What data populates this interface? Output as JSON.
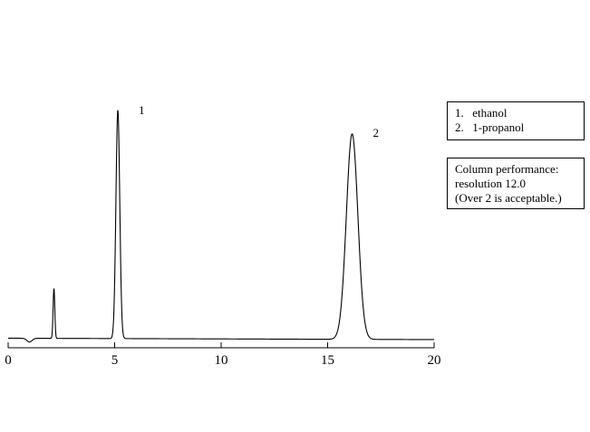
{
  "chart_data": {
    "type": "line",
    "title": "",
    "xlabel": "",
    "ylabel": "",
    "xlim": [
      0,
      20
    ],
    "ylim": [
      0,
      100
    ],
    "grid": false,
    "x_ticks": [
      0,
      5,
      10,
      15,
      20
    ],
    "x_tick_labels": [
      "0",
      "5",
      "10",
      "15",
      "20"
    ],
    "baseline": {
      "start": 1.0,
      "end": 0.4
    },
    "dip": {
      "x": 1.0,
      "depth": 1.6,
      "width": 0.12
    },
    "peaks": [
      {
        "x": 2.15,
        "height": 21.5,
        "width": 0.04,
        "label": ""
      },
      {
        "x": 5.15,
        "height": 98.5,
        "width": 0.09,
        "label": "1"
      },
      {
        "x": 16.15,
        "height": 88.6,
        "width": 0.27,
        "label": "2"
      }
    ]
  },
  "legend": {
    "items": [
      {
        "num": "1.",
        "name": "ethanol"
      },
      {
        "num": "2.",
        "name": "1-propanol"
      }
    ]
  },
  "performance": {
    "line1": "Column performance:",
    "line2": "resolution 12.0",
    "line3": "(Over 2 is acceptable.)"
  }
}
